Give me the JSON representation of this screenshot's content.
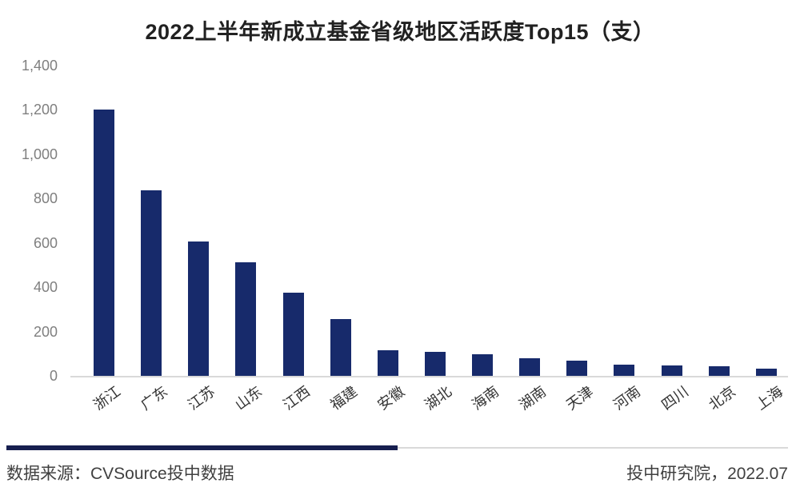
{
  "title": "2022上半年新成立基金省级地区活跃度Top15（支）",
  "footer": {
    "source": "数据来源：CVSource投中数据",
    "credit": "投中研究院，2022.07"
  },
  "colors": {
    "bar": "#172a6b",
    "divider_navy": "#171f4f",
    "axis_line": "#d9d9d9",
    "y_label_text": "#7f7f7f",
    "x_label_text": "#333333",
    "title_text": "#212121",
    "footer_text": "#404040",
    "background": "#ffffff"
  },
  "chart_data": {
    "type": "bar",
    "title": "2022上半年新成立基金省级地区活跃度Top15（支）",
    "categories": [
      "浙江",
      "广东",
      "江苏",
      "山东",
      "江西",
      "福建",
      "安徽",
      "湖北",
      "海南",
      "湖南",
      "天津",
      "河南",
      "四川",
      "北京",
      "上海"
    ],
    "values": [
      1200,
      837,
      605,
      513,
      374,
      258,
      115,
      108,
      98,
      80,
      70,
      52,
      48,
      44,
      32
    ],
    "xlabel": "",
    "ylabel": "",
    "ylim": [
      0,
      1400
    ],
    "ytick_interval": 200,
    "ytick_labels": [
      "0",
      "200",
      "400",
      "600",
      "800",
      "1,000",
      "1,200",
      "1,400"
    ],
    "grid": false,
    "legend": false,
    "bar_color": "#172a6b",
    "x_label_rotation_deg": -36
  }
}
